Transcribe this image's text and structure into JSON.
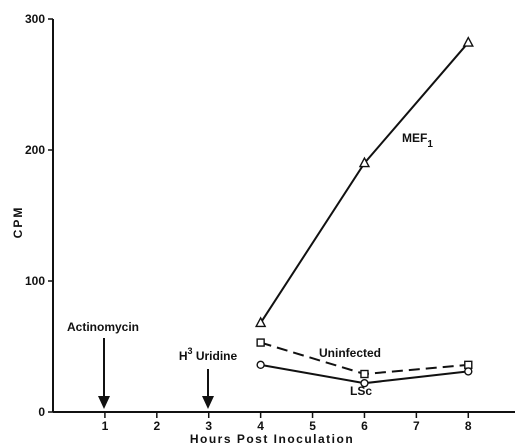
{
  "chart_data": {
    "type": "line",
    "xlabel": "Hours Post Inoculation",
    "ylabel": "CPM",
    "xlim": [
      0,
      8.9
    ],
    "ylim": [
      0,
      300
    ],
    "xticks": [
      1,
      2,
      3,
      4,
      5,
      6,
      7,
      8
    ],
    "yticks": [
      0,
      100,
      200,
      300
    ],
    "grid": false,
    "series": [
      {
        "name": "MEF",
        "name_subscript": "1",
        "marker": "triangle",
        "dash": "solid",
        "x": [
          4,
          6,
          8
        ],
        "y": [
          68,
          190,
          282
        ]
      },
      {
        "name": "Uninfected",
        "marker": "square",
        "dash": "dashed",
        "x": [
          4,
          6,
          8
        ],
        "y": [
          53,
          29,
          36
        ]
      },
      {
        "name": "LSc",
        "marker": "circle",
        "dash": "solid",
        "x": [
          4,
          6,
          8
        ],
        "y": [
          36,
          22,
          31
        ]
      }
    ],
    "annotations": [
      {
        "text": "Actinomycin",
        "x": 1
      },
      {
        "text": "H",
        "sup": "3",
        "text_after": " Uridine",
        "x": 3
      }
    ]
  }
}
